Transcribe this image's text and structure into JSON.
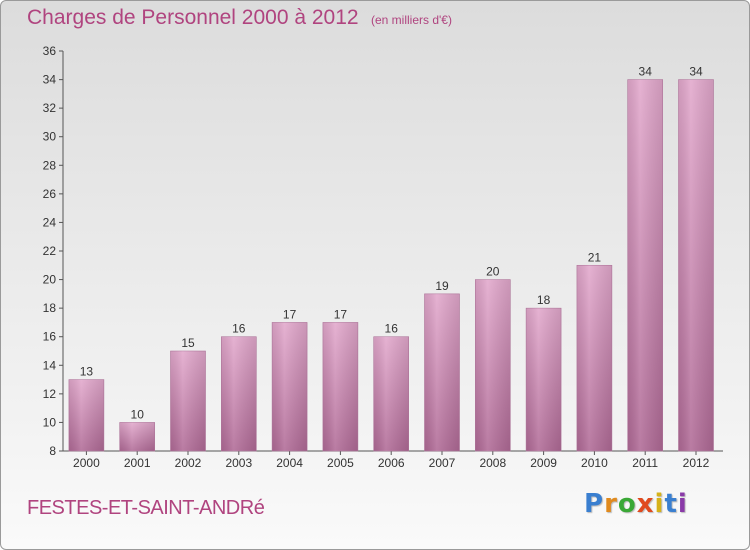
{
  "title": "Charges de Personnel 2000 à 2012",
  "subtitle": "(en milliers d'€)",
  "place": "FESTES-ET-SAINT-ANDRé",
  "logo": {
    "letters": [
      "P",
      "r",
      "o",
      "x",
      "i",
      "t",
      "i"
    ],
    "colors": [
      "#3a7fd0",
      "#e08a1e",
      "#3aa836",
      "#e04a1e",
      "#d6b21a",
      "#3a7fd0",
      "#8a3aa8"
    ]
  },
  "colors": {
    "bar_light": "#e2a8cc",
    "bar_dark": "#b06a96",
    "accent": "#b0447f"
  },
  "chart_data": {
    "type": "bar",
    "categories": [
      "2000",
      "2001",
      "2002",
      "2003",
      "2004",
      "2005",
      "2006",
      "2007",
      "2008",
      "2009",
      "2010",
      "2011",
      "2012"
    ],
    "values": [
      13,
      10,
      15,
      16,
      17,
      17,
      16,
      19,
      20,
      18,
      21,
      34,
      34
    ],
    "value_labels": [
      "13",
      "10",
      "15",
      "16",
      "17",
      "17",
      "16",
      "19",
      "20",
      "18",
      "21",
      "34",
      "34"
    ],
    "ylim": [
      8,
      36
    ],
    "yticks": [
      8,
      10,
      12,
      14,
      16,
      18,
      20,
      22,
      24,
      26,
      28,
      30,
      32,
      34,
      36
    ],
    "title": "Charges de Personnel 2000 à 2012",
    "xlabel": "",
    "ylabel": "",
    "grid": false
  }
}
